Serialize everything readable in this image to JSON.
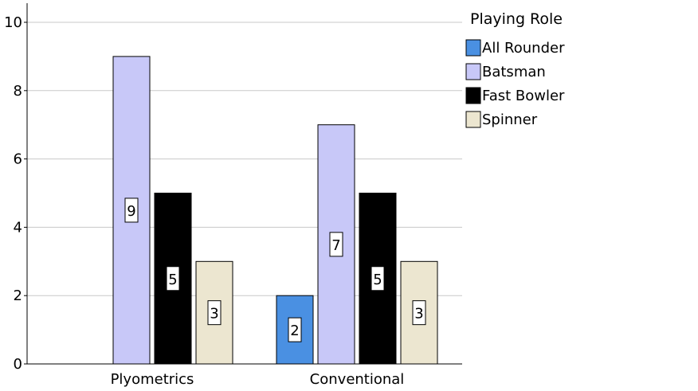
{
  "chart_data": {
    "type": "bar",
    "categories": [
      "Plyometrics",
      "Conventional"
    ],
    "series": [
      {
        "name": "All Rounder",
        "values": [
          null,
          2
        ],
        "color": "#4a90e2"
      },
      {
        "name": "Batsman",
        "values": [
          9,
          7
        ],
        "color": "#c8c8f8"
      },
      {
        "name": "Fast Bowler",
        "values": [
          5,
          5
        ],
        "color": "#000000"
      },
      {
        "name": "Spinner",
        "values": [
          3,
          3
        ],
        "color": "#ece6d0"
      }
    ],
    "title": "",
    "xlabel": "",
    "ylabel": "",
    "ylim": [
      0,
      10
    ],
    "yticks": [
      0,
      2,
      4,
      6,
      8,
      10
    ],
    "grid": true,
    "legend": {
      "title": "Playing Role",
      "placement": "right"
    }
  }
}
